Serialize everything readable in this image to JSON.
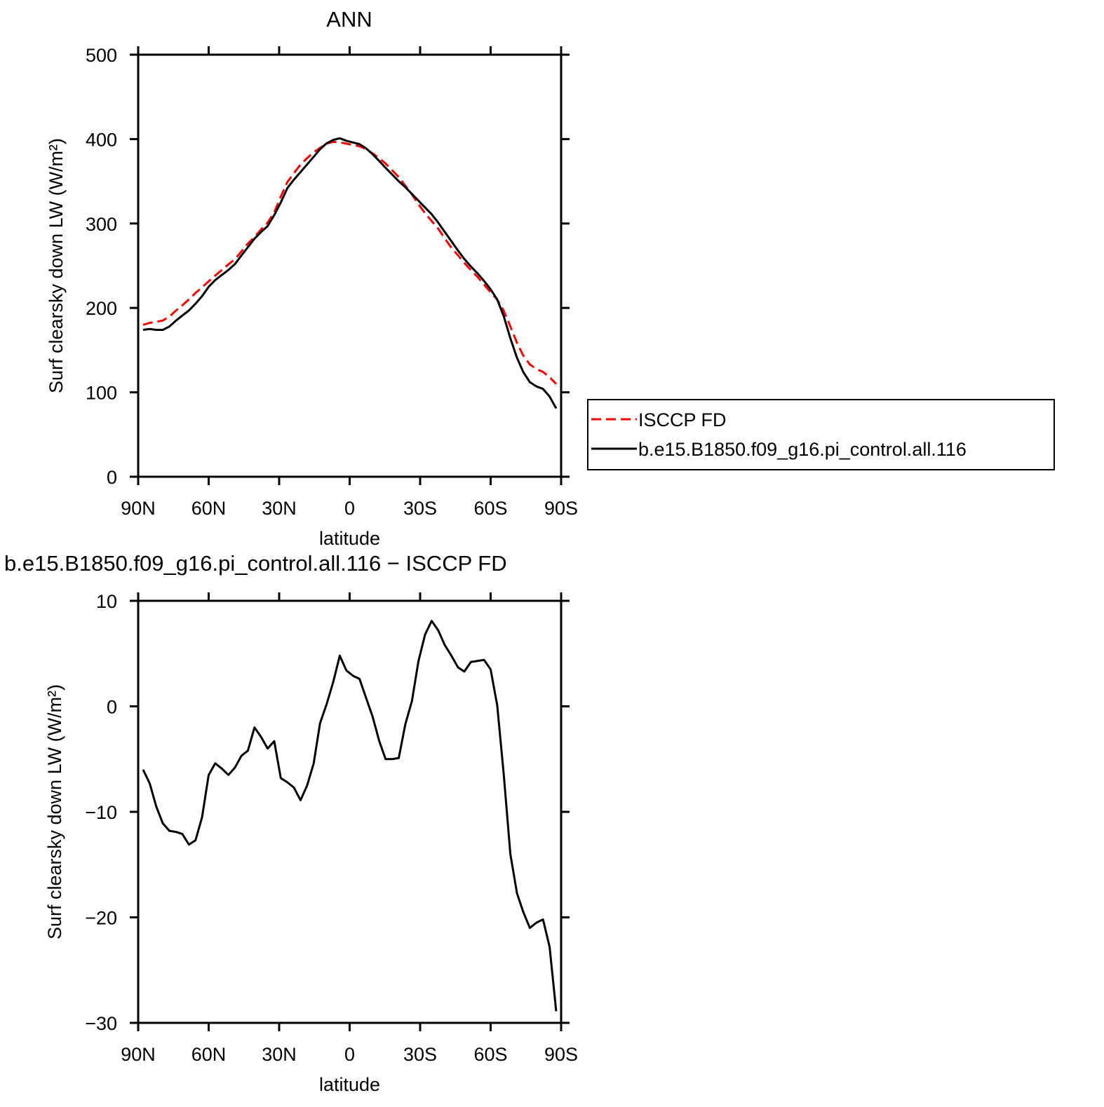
{
  "chart_data": [
    {
      "type": "line",
      "title": "ANN",
      "xlabel": "latitude",
      "ylabel": "Surf clearsky down LW (W/m²)",
      "xlim": [
        90,
        -90
      ],
      "xticks": [
        {
          "value": 90,
          "label": "90N"
        },
        {
          "value": 60,
          "label": "60N"
        },
        {
          "value": 30,
          "label": "30N"
        },
        0,
        {
          "value": -30,
          "label": "30S"
        },
        {
          "value": -60,
          "label": "60S"
        },
        {
          "value": -90,
          "label": "90S"
        }
      ],
      "ylim": [
        0,
        500
      ],
      "yticks": [
        0,
        100,
        200,
        300,
        400,
        500
      ],
      "legend": "right",
      "x": [
        87.9,
        85.1,
        82.3,
        79.5,
        76.7,
        73.9,
        71.2,
        68.4,
        65.6,
        62.8,
        60.0,
        57.2,
        54.4,
        51.6,
        48.8,
        46.1,
        43.3,
        40.5,
        37.7,
        34.9,
        32.1,
        29.3,
        26.5,
        23.7,
        20.9,
        18.1,
        15.3,
        12.6,
        9.8,
        7.0,
        4.2,
        1.4,
        -1.4,
        -4.2,
        -7.0,
        -9.8,
        -12.6,
        -15.3,
        -18.1,
        -20.9,
        -23.7,
        -26.5,
        -29.3,
        -32.1,
        -34.9,
        -37.7,
        -40.5,
        -43.3,
        -46.1,
        -48.8,
        -51.6,
        -54.4,
        -57.2,
        -60.0,
        -62.8,
        -65.6,
        -68.4,
        -71.2,
        -73.9,
        -76.7,
        -79.5,
        -82.3,
        -85.1,
        -87.9
      ],
      "series": [
        {
          "name": "ISCCP FD",
          "color": "#ff0000",
          "dash": true,
          "values": [
            180,
            182.3,
            183.5,
            185.1,
            189.8,
            196.9,
            203.1,
            210.1,
            217.7,
            224.5,
            231.5,
            238.4,
            244.9,
            251.5,
            257.8,
            266.7,
            276.2,
            284,
            292.9,
            301,
            313.3,
            331.8,
            349.2,
            359.7,
            369.9,
            377.5,
            384.4,
            389.6,
            394.8,
            396.7,
            396.2,
            394.6,
            393.1,
            391.4,
            388.2,
            383,
            377.3,
            371,
            363,
            354.9,
            344.7,
            334.5,
            322.7,
            312.2,
            302.9,
            293.8,
            282.2,
            271.3,
            262.4,
            253.3,
            244.8,
            236.8,
            227.6,
            218.5,
            209.9,
            196.5,
            178,
            158.7,
            143.5,
            133,
            127.5,
            124.2,
            117.8,
            109.9
          ]
        },
        {
          "name": "b.e15.B1850.f09_g16.pi_control.all.116",
          "color": "#000000",
          "dash": false,
          "values": [
            174,
            175,
            174,
            174,
            178,
            185,
            191,
            197,
            205,
            214,
            225,
            233,
            239,
            245,
            252,
            262,
            272,
            282,
            290,
            297,
            310,
            325,
            342,
            352,
            361,
            370,
            379,
            388,
            395,
            399,
            401,
            398,
            396,
            394,
            389,
            382,
            374,
            366,
            358,
            350,
            343,
            335,
            327,
            319,
            311,
            301,
            290,
            279,
            268,
            258,
            249,
            241,
            232,
            222,
            210,
            190,
            164,
            141,
            124,
            112,
            107,
            104,
            95,
            81
          ]
        }
      ]
    },
    {
      "type": "line",
      "title": "b.e15.B1850.f09_g16.pi_control.all.116 − ISCCP FD",
      "xlabel": "latitude",
      "ylabel": "Surf clearsky down LW (W/m²)",
      "xlim": [
        90,
        -90
      ],
      "xticks": [
        {
          "value": 90,
          "label": "90N"
        },
        {
          "value": 60,
          "label": "60N"
        },
        {
          "value": 30,
          "label": "30N"
        },
        0,
        {
          "value": -30,
          "label": "30S"
        },
        {
          "value": -60,
          "label": "60S"
        },
        {
          "value": -90,
          "label": "90S"
        }
      ],
      "ylim": [
        -30,
        10
      ],
      "yticks": [
        {
          "value": -30,
          "label": "−30"
        },
        {
          "value": -20,
          "label": "−20"
        },
        {
          "value": -10,
          "label": "−10"
        },
        0,
        10
      ],
      "x": [
        87.9,
        85.1,
        82.3,
        79.5,
        76.7,
        73.9,
        71.2,
        68.4,
        65.6,
        62.8,
        60.0,
        57.2,
        54.4,
        51.6,
        48.8,
        46.1,
        43.3,
        40.5,
        37.7,
        34.9,
        32.1,
        29.3,
        26.5,
        23.7,
        20.9,
        18.1,
        15.3,
        12.6,
        9.8,
        7.0,
        4.2,
        1.4,
        -1.4,
        -4.2,
        -7.0,
        -9.8,
        -12.6,
        -15.3,
        -18.1,
        -20.9,
        -23.7,
        -26.5,
        -29.3,
        -32.1,
        -34.9,
        -37.7,
        -40.5,
        -43.3,
        -46.1,
        -48.8,
        -51.6,
        -54.4,
        -57.2,
        -60.0,
        -62.8,
        -65.6,
        -68.4,
        -71.2,
        -73.9,
        -76.7,
        -79.5,
        -82.3,
        -85.1,
        -87.9
      ],
      "series": [
        {
          "color": "#000000",
          "dash": false,
          "values": [
            -6,
            -7.3,
            -9.5,
            -11.1,
            -11.8,
            -11.9,
            -12.1,
            -13.1,
            -12.7,
            -10.5,
            -6.5,
            -5.4,
            -5.9,
            -6.5,
            -5.8,
            -4.7,
            -4.2,
            -2.0,
            -2.9,
            -4.0,
            -3.3,
            -6.8,
            -7.2,
            -7.7,
            -8.9,
            -7.5,
            -5.4,
            -1.6,
            0.2,
            2.3,
            4.8,
            3.4,
            2.9,
            2.6,
            0.8,
            -1.0,
            -3.3,
            -5.0,
            -5.0,
            -4.9,
            -1.7,
            0.5,
            4.3,
            6.8,
            8.1,
            7.2,
            5.8,
            4.8,
            3.7,
            3.3,
            4.2,
            4.3,
            4.4,
            3.5,
            0.1,
            -6.5,
            -14.0,
            -17.7,
            -19.5,
            -21.0,
            -20.5,
            -20.2,
            -22.8,
            -28.9
          ]
        }
      ]
    }
  ]
}
